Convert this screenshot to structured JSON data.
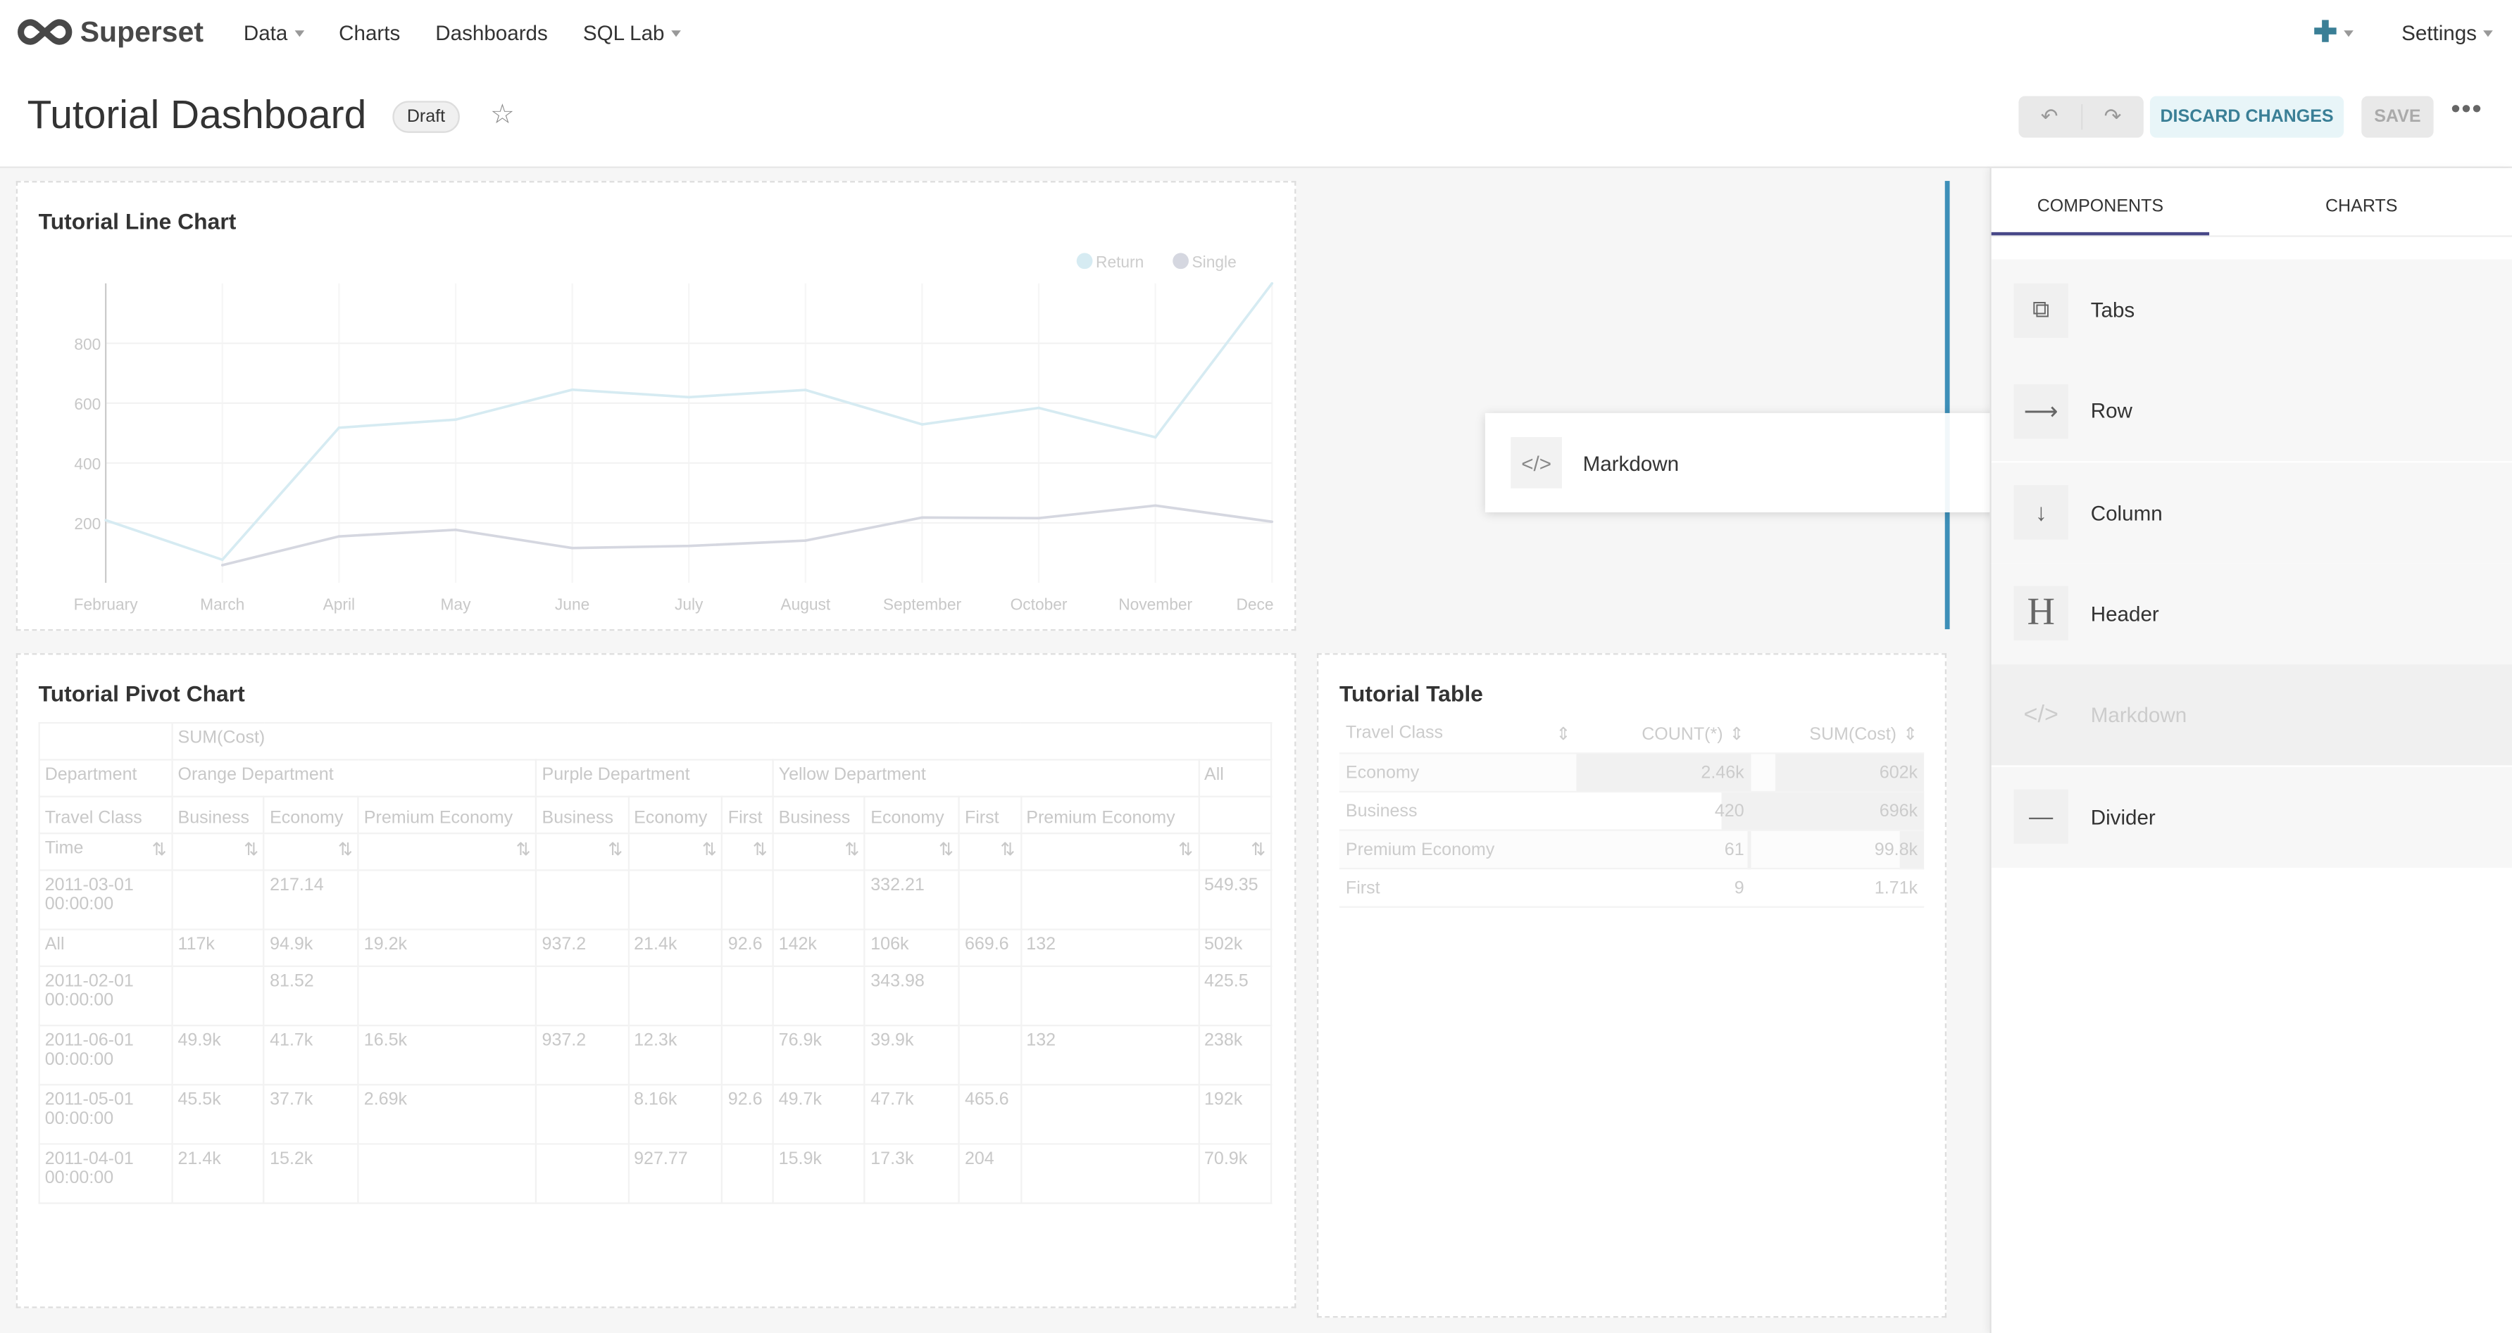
{
  "nav": {
    "brand": "Superset",
    "items": [
      {
        "label": "Data",
        "dropdown": true
      },
      {
        "label": "Charts"
      },
      {
        "label": "Dashboards"
      },
      {
        "label": "SQL Lab",
        "dropdown": true
      }
    ],
    "plus_icon": "plus-icon",
    "settings": "Settings"
  },
  "header": {
    "title": "Tutorial Dashboard",
    "badge": "Draft",
    "undo_icon": "undo-icon",
    "redo_icon": "redo-icon",
    "discard": "DISCARD CHANGES",
    "save": "SAVE",
    "more": "•••"
  },
  "colors": {
    "accent": "#3a7f96",
    "drop_indicator": "#3d8fb8",
    "return": "#d6ebf2",
    "single": "#d5d7e0"
  },
  "line_chart": {
    "title": "Tutorial Line Chart"
  },
  "chart_data": {
    "type": "line",
    "categories": [
      "February",
      "March",
      "April",
      "May",
      "June",
      "July",
      "August",
      "September",
      "October",
      "November",
      "Dece"
    ],
    "series": [
      {
        "name": "Return",
        "values": [
          209,
          77,
          518,
          545,
          645,
          620,
          644,
          529,
          584,
          486,
          1000
        ]
      },
      {
        "name": "Single",
        "values": [
          null,
          59,
          155,
          177,
          116,
          123,
          141,
          218,
          216,
          258,
          204
        ]
      }
    ],
    "yticks": [
      200,
      400,
      600,
      800
    ],
    "ylim": [
      0,
      1000
    ],
    "legend": "top-right",
    "grid": true
  },
  "ghost": {
    "label": "Markdown"
  },
  "pivot": {
    "title": "Tutorial Pivot Chart",
    "metric": "SUM(Cost)",
    "dept_label": "Department",
    "departments": [
      "Orange Department",
      "Purple Department",
      "Yellow Department",
      "All"
    ],
    "class_label": "Travel Class",
    "classes": [
      "Business",
      "Economy",
      "Premium Economy",
      "Business",
      "Economy",
      "First",
      "Business",
      "Economy",
      "First",
      "Premium Economy",
      ""
    ],
    "time_label": "Time",
    "rows": [
      {
        "label": "2011-03-01 00:00:00",
        "cells": [
          "",
          "217.14",
          "",
          "",
          "",
          "",
          "",
          "332.21",
          "",
          "",
          "549.35"
        ]
      },
      {
        "label": "All",
        "cells": [
          "117k",
          "94.9k",
          "19.2k",
          "937.2",
          "21.4k",
          "92.6",
          "142k",
          "106k",
          "669.6",
          "132",
          "502k"
        ]
      },
      {
        "label": "2011-02-01 00:00:00",
        "cells": [
          "",
          "81.52",
          "",
          "",
          "",
          "",
          "",
          "343.98",
          "",
          "",
          "425.5"
        ]
      },
      {
        "label": "2011-06-01 00:00:00",
        "cells": [
          "49.9k",
          "41.7k",
          "16.5k",
          "937.2",
          "12.3k",
          "",
          "76.9k",
          "39.9k",
          "",
          "132",
          "238k"
        ]
      },
      {
        "label": "2011-05-01 00:00:00",
        "cells": [
          "45.5k",
          "37.7k",
          "2.69k",
          "",
          "8.16k",
          "92.6",
          "49.7k",
          "47.7k",
          "465.6",
          "",
          "192k"
        ]
      },
      {
        "label": "2011-04-01 00:00:00",
        "cells": [
          "21.4k",
          "15.2k",
          "",
          "",
          "927.77",
          "",
          "15.9k",
          "17.3k",
          "204",
          "",
          "70.9k"
        ]
      }
    ]
  },
  "table": {
    "title": "Tutorial Table",
    "columns": [
      "Travel Class",
      "COUNT(*)",
      "SUM(Cost)"
    ],
    "rows": [
      {
        "cls": "Economy",
        "count": "2.46k",
        "sum": "602k",
        "count_frac": 1.0,
        "sum_frac": 0.86
      },
      {
        "cls": "Business",
        "count": "420",
        "sum": "696k",
        "count_frac": 0.17,
        "sum_frac": 1.0
      },
      {
        "cls": "Premium Economy",
        "count": "61",
        "sum": "99.8k",
        "count_frac": 0.02,
        "sum_frac": 0.14
      },
      {
        "cls": "First",
        "count": "9",
        "sum": "1.71k",
        "count_frac": 0.0,
        "sum_frac": 0.0
      }
    ]
  },
  "sidebar": {
    "tabs": [
      "COMPONENTS",
      "CHARTS"
    ],
    "components": [
      {
        "label": "Tabs",
        "icon": "tabs-icon",
        "glyph": "⧉"
      },
      {
        "label": "Row",
        "icon": "arrow-right-icon",
        "glyph": "⟶"
      },
      {
        "label": "Column",
        "icon": "arrow-down-icon",
        "glyph": "↓"
      },
      {
        "label": "Header",
        "icon": "header-icon",
        "glyph": "H"
      },
      {
        "label": "Markdown",
        "icon": "code-icon",
        "glyph": "</>",
        "disabled": true
      },
      {
        "label": "Divider",
        "icon": "divider-icon",
        "glyph": "—"
      }
    ]
  }
}
